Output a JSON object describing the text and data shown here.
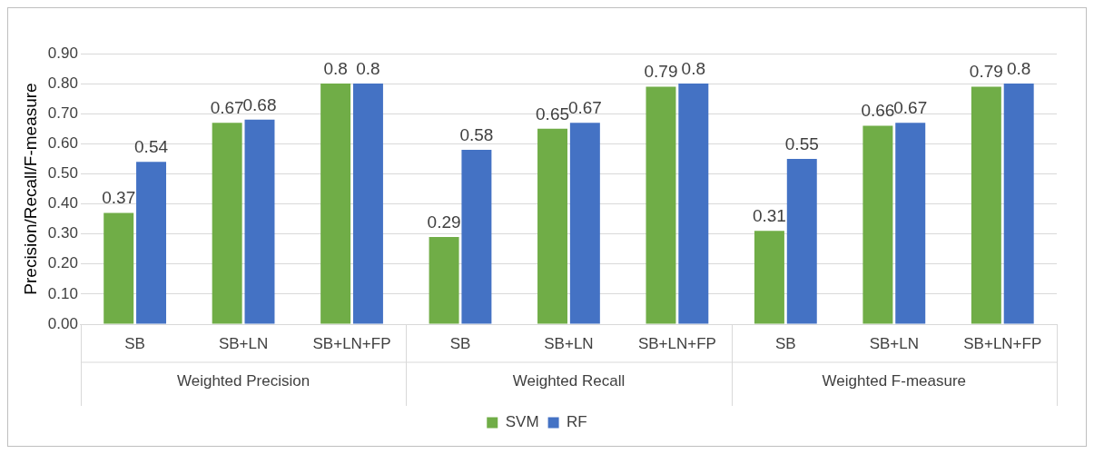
{
  "chart_data": {
    "type": "bar",
    "ylabel": "Precision/Recall/F-measure",
    "categories": [
      "SB",
      "SB+LN",
      "SB+LN+FP",
      "SB",
      "SB+LN",
      "SB+LN+FP",
      "SB",
      "SB+LN",
      "SB+LN+FP"
    ],
    "annotations": [
      "Weighted Precision",
      "Weighted Recall",
      "Weighted F-measure"
    ],
    "series": [
      {
        "name": "SVM",
        "color": "#70ad47",
        "values": [
          0.37,
          0.67,
          0.8,
          0.29,
          0.65,
          0.79,
          0.31,
          0.66,
          0.79
        ]
      },
      {
        "name": "RF",
        "color": "#4472c4",
        "values": [
          0.54,
          0.68,
          0.8,
          0.58,
          0.67,
          0.8,
          0.55,
          0.67,
          0.8
        ]
      }
    ],
    "ylim": [
      0,
      0.9
    ],
    "yticks": [
      {
        "value": 0,
        "label": "0.00"
      },
      {
        "value": 0.1,
        "label": "0.10"
      },
      {
        "value": 0.2,
        "label": "0.20"
      },
      {
        "value": 0.3,
        "label": "0.30"
      },
      {
        "value": 0.4,
        "label": "0.40"
      },
      {
        "value": 0.5,
        "label": "0.50"
      },
      {
        "value": 0.6,
        "label": "0.60"
      },
      {
        "value": 0.7,
        "label": "0.70"
      },
      {
        "value": 0.8,
        "label": "0.80"
      },
      {
        "value": 0.9,
        "label": "0.90"
      }
    ],
    "grid": "y",
    "legend": "bottom",
    "data_labels": true
  }
}
